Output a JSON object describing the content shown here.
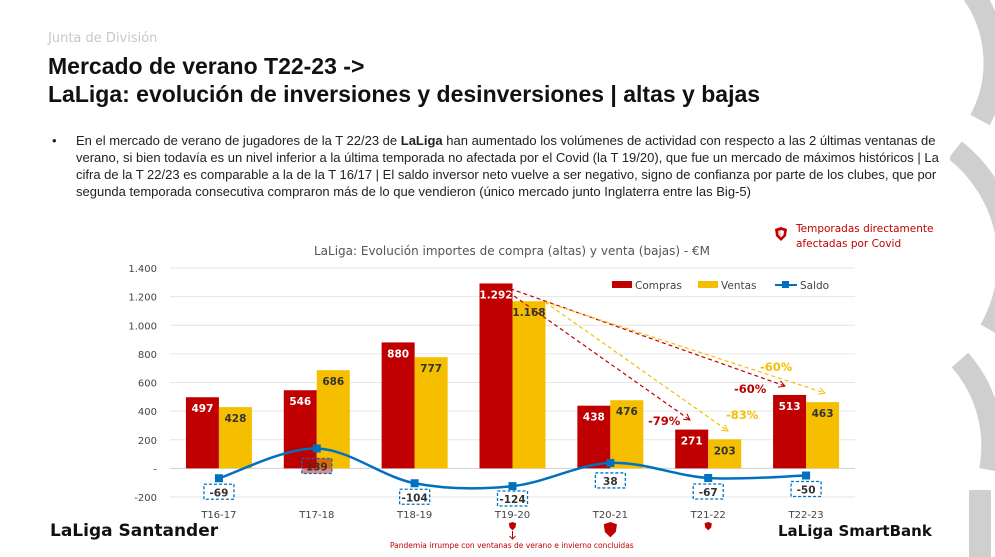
{
  "header": {
    "kicker": "Junta de División",
    "title_line1": "Mercado de verano T22-23 ->",
    "title_line2": "LaLiga: evolución de inversiones y desinversiones | altas y bajas"
  },
  "bullet": {
    "pre": "En el mercado de verano de jugadores de la T 22/23 de ",
    "bold": "LaLiga",
    "post": " han aumentado los volúmenes de actividad con respecto a las 2 últimas ventanas de verano, si bien todavía es un nivel inferior a la última temporada no afectada por el Covid (la T 19/20), que fue un mercado de máximos históricos  |  La cifra de la T 22/23 es comparable a la de la T 16/17  |  El saldo inversor neto vuelve a ser negativo, signo de confianza por parte de los clubes, que por segunda temporada consecutiva compraron más de lo que vendieron (único mercado junto Inglaterra entre las Big-5)"
  },
  "covid_note": {
    "line1": "Temporadas directamente",
    "line2": "afectadas por Covid"
  },
  "pandemia_note": "Pandemia irrumpe con ventanas de verano e invierno concluidas",
  "logos": {
    "left": "LaLiga Santander",
    "right": "LaLiga SmartBank"
  },
  "colors": {
    "compras": "#c00000",
    "ventas": "#f5bf00",
    "saldo": "#0070c0",
    "covid": "#c00000"
  },
  "chart_data": {
    "type": "bar",
    "title": "LaLiga: Evolución importes de compra (altas) y venta (bajas) - €M",
    "categories": [
      "T16-17",
      "T17-18",
      "T18-19",
      "T19-20",
      "T20-21",
      "T21-22",
      "T22-23"
    ],
    "ylim": [
      -200,
      1400
    ],
    "yticks": [
      -200,
      0,
      200,
      400,
      600,
      800,
      1000,
      1200,
      1400
    ],
    "ytick_labels": [
      "-200",
      "-",
      "200",
      "400",
      "600",
      "800",
      "1.000",
      "1.200",
      "1.400"
    ],
    "grid": true,
    "legend": "top-right",
    "series": [
      {
        "name": "Compras",
        "type": "bar",
        "values": [
          497,
          546,
          880,
          1292,
          438,
          271,
          513
        ],
        "labels": [
          "497",
          "546",
          "880",
          "1.292",
          "438",
          "271",
          "513"
        ]
      },
      {
        "name": "Ventas",
        "type": "bar",
        "values": [
          428,
          686,
          777,
          1168,
          476,
          203,
          463
        ],
        "labels": [
          "428",
          "686",
          "777",
          "1.168",
          "476",
          "203",
          "463"
        ]
      },
      {
        "name": "Saldo",
        "type": "line",
        "values": [
          -69,
          139,
          -104,
          -124,
          38,
          -67,
          -50
        ],
        "labels": [
          "-69",
          "139",
          "-104",
          "-124",
          "38",
          "-67",
          "-50"
        ]
      }
    ],
    "covid_seasons": [
      "T19-20",
      "T20-21",
      "T21-22"
    ],
    "annotations": [
      {
        "text": "-79%",
        "series": "Compras",
        "from": "T19-20",
        "to": "T21-22"
      },
      {
        "text": "-83%",
        "series": "Ventas",
        "from": "T19-20",
        "to": "T21-22"
      },
      {
        "text": "-60%",
        "series": "Compras",
        "from": "T19-20",
        "to": "T22-23"
      },
      {
        "text": "-60%",
        "series": "Ventas",
        "from": "T19-20",
        "to": "T22-23"
      }
    ]
  }
}
